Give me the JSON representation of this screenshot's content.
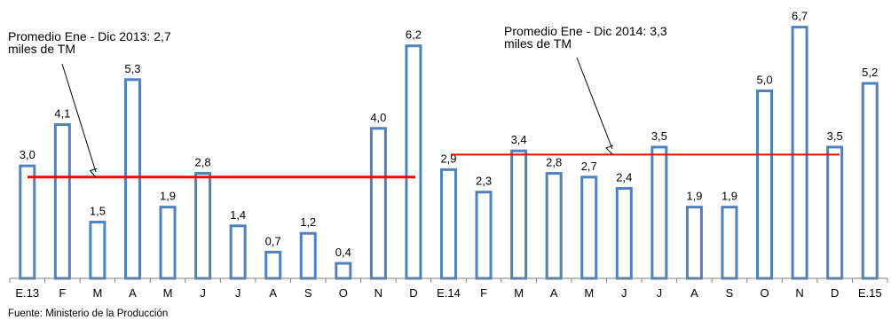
{
  "chart_data": {
    "type": "bar",
    "categories": [
      "E.13",
      "F",
      "M",
      "A",
      "M",
      "J",
      "J",
      "A",
      "S",
      "O",
      "N",
      "D",
      "E.14",
      "F",
      "M",
      "A",
      "M",
      "J",
      "J",
      "A",
      "S",
      "O",
      "N",
      "D",
      "E.15"
    ],
    "values": [
      3.0,
      4.1,
      1.5,
      5.3,
      1.9,
      2.8,
      1.4,
      0.7,
      1.2,
      0.4,
      4.0,
      6.2,
      2.9,
      2.3,
      3.4,
      2.8,
      2.7,
      2.4,
      3.5,
      1.9,
      1.9,
      5.0,
      6.7,
      3.5,
      5.2
    ],
    "value_labels": [
      "3,0",
      "4,1",
      "1,5",
      "5,3",
      "1,9",
      "2,8",
      "1,4",
      "0,7",
      "1,2",
      "0,4",
      "4,0",
      "6,2",
      "2,9",
      "2,3",
      "3,4",
      "2,8",
      "2,7",
      "2,4",
      "3,5",
      "1,9",
      "1,9",
      "5,0",
      "6,7",
      "3,5",
      "5,2"
    ],
    "bar_color": "#4F81BD",
    "avg_line_color": "#FF0000",
    "averages": [
      {
        "value": 2.7,
        "from_index": 0,
        "to_index": 11,
        "label_line1": "Promedio Ene - Dic 2013: 2,7",
        "label_line2": "miles de TM"
      },
      {
        "value": 3.3,
        "from_index": 12,
        "to_index": 23,
        "label_line1": "Promedio  Ene - Dic 2014: 3,3",
        "label_line2": "miles de TM"
      }
    ],
    "ylim": [
      0,
      7
    ],
    "grid": false
  },
  "source": "Fuente: Ministerio de la Producción"
}
